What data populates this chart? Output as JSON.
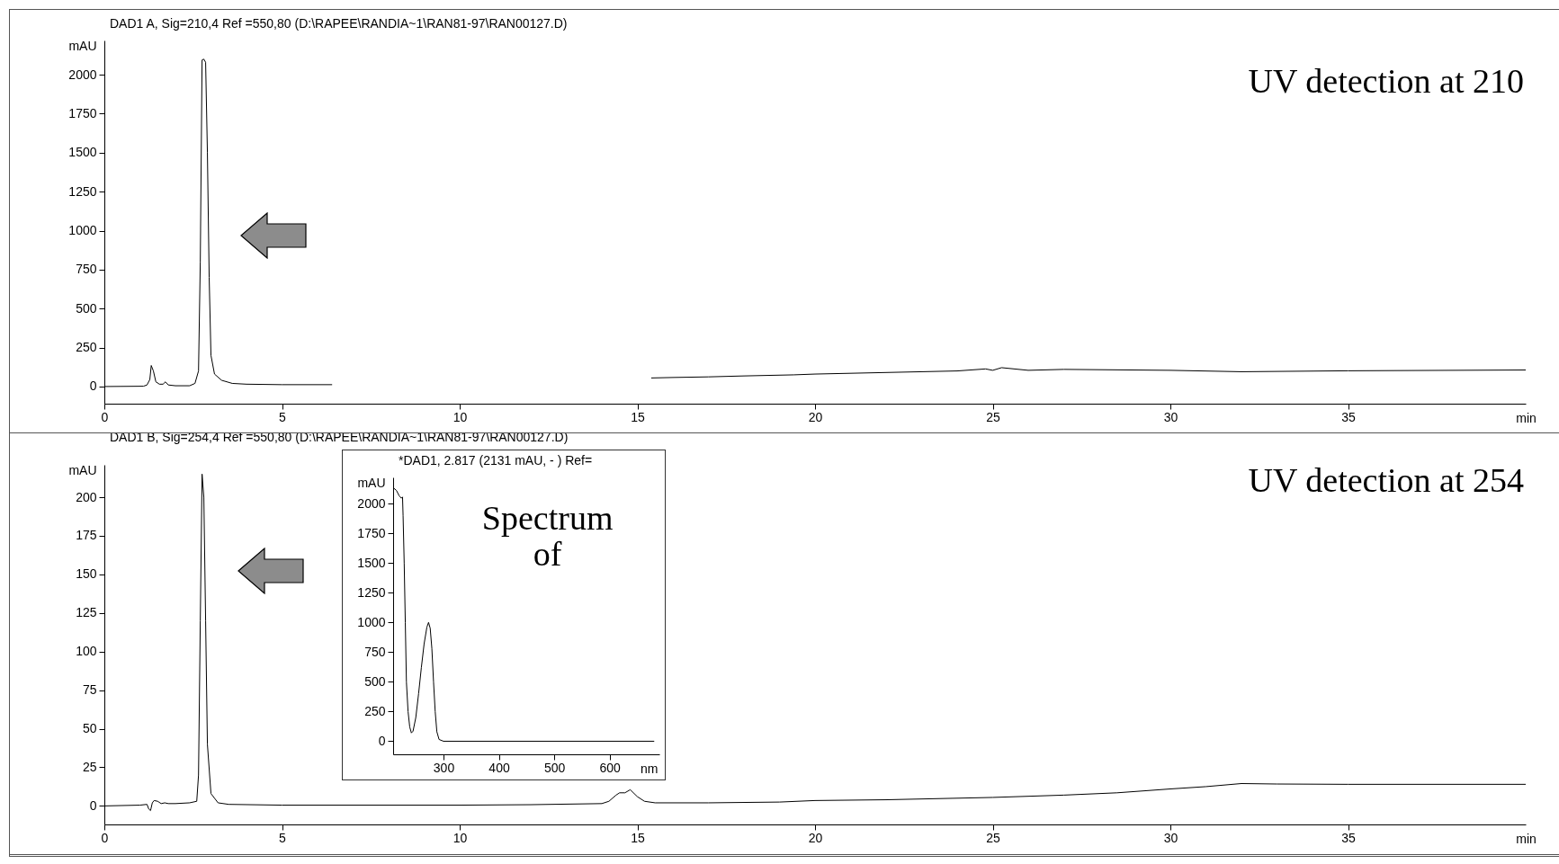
{
  "chart_data": [
    {
      "type": "line",
      "title": "DAD1 A, Sig=210,4 Ref =550,80 (D:\\RAPEE\\RANDIA~1\\RAN81-97\\RAN00127.D)",
      "xlabel": "min",
      "ylabel": "mAU",
      "annotations": [
        "UV detection at 210"
      ],
      "x": [
        0,
        1.1,
        1.2,
        1.28,
        1.32,
        1.38,
        1.45,
        1.55,
        1.65,
        1.72,
        1.8,
        2.0,
        2.4,
        2.55,
        2.65,
        2.7,
        2.75,
        2.8,
        2.85,
        2.9,
        2.95,
        3.0,
        3.1,
        3.3,
        3.6,
        4,
        5,
        6,
        6.4,
        10,
        15.4,
        16,
        17,
        18,
        19.4,
        20,
        22,
        24,
        24.8,
        25,
        25.25,
        26,
        27,
        30,
        32,
        35,
        40
      ],
      "series": [
        {
          "color": "#000000",
          "values": [
            0,
            2,
            10,
            45,
            135,
            100,
            30,
            15,
            15,
            30,
            10,
            5,
            5,
            20,
            100,
            800,
            2095,
            2100,
            2080,
            1500,
            700,
            200,
            80,
            40,
            20,
            15,
            12,
            12,
            12,
            null,
            55,
            58,
            62,
            68,
            75,
            80,
            90,
            100,
            113,
            104,
            121,
            104,
            110,
            104,
            95,
            101,
            106
          ]
        }
      ],
      "xlim": [
        0,
        40
      ],
      "xticks": [
        0,
        5,
        10,
        15,
        20,
        25,
        30,
        35
      ],
      "ylim": [
        -110,
        2220
      ],
      "yticks": [
        0,
        250,
        500,
        750,
        1000,
        1250,
        1500,
        1750,
        2000
      ]
    },
    {
      "type": "line",
      "title": "DAD1 B, Sig=254,4 Ref =550,80 (D:\\RAPEE\\RANDIA~1\\RAN81-97\\RAN00127.D)",
      "xlabel": "min",
      "ylabel": "mAU",
      "annotations": [
        "UV detection at 254"
      ],
      "x": [
        0,
        1.0,
        1.2,
        1.25,
        1.3,
        1.35,
        1.4,
        1.5,
        1.6,
        1.7,
        1.8,
        2.0,
        2.4,
        2.6,
        2.65,
        2.7,
        2.75,
        2.8,
        2.85,
        2.9,
        3.0,
        3.2,
        3.5,
        5,
        10,
        12,
        14,
        14.2,
        14.4,
        14.5,
        14.65,
        14.8,
        15.0,
        15.2,
        15.5,
        17,
        19,
        20,
        22,
        25,
        27,
        28.5,
        30,
        31,
        32,
        33,
        35,
        38,
        40
      ],
      "series": [
        {
          "color": "#000000",
          "values": [
            0,
            0.5,
            1,
            -2,
            -3,
            2,
            3.5,
            3,
            1.5,
            2,
            1.5,
            1.5,
            2,
            3,
            20,
            120,
            215,
            200,
            120,
            40,
            8,
            2,
            1,
            0.5,
            0.5,
            0.8,
            1.5,
            3,
            7,
            8.5,
            8.5,
            10.5,
            6,
            3,
            2,
            2,
            2.5,
            3.5,
            4,
            5.5,
            7,
            8.5,
            11,
            12.5,
            14.5,
            14.2,
            14,
            14,
            14
          ]
        }
      ],
      "xlim": [
        0,
        40
      ],
      "xticks": [
        0,
        5,
        10,
        15,
        20,
        25,
        30,
        35
      ],
      "ylim": [
        -12,
        221
      ],
      "yticks": [
        0,
        25,
        50,
        75,
        100,
        125,
        150,
        175,
        200
      ]
    },
    {
      "type": "line",
      "title": "*DAD1, 2.817 (2131 mAU, - ) Ref=",
      "xlabel": "nm",
      "ylabel": "mAU",
      "annotations": [
        "Spectrum of"
      ],
      "x": [
        210,
        215,
        220,
        224,
        226,
        227,
        229,
        231,
        233,
        236,
        239,
        242,
        245,
        250,
        255,
        260,
        265,
        270,
        273,
        276,
        279,
        282,
        285,
        288,
        292,
        300,
        680
      ],
      "series": [
        {
          "color": "#000000",
          "values": [
            2130,
            2110,
            2065,
            2045,
            2055,
            1900,
            1500,
            1000,
            500,
            250,
            120,
            70,
            85,
            200,
            400,
            620,
            820,
            960,
            1000,
            950,
            780,
            500,
            250,
            80,
            15,
            0,
            0
          ]
        }
      ],
      "xlim": [
        209,
        690
      ],
      "xticks": [
        300,
        400,
        500,
        600
      ],
      "ylim": [
        -110,
        2220
      ],
      "yticks": [
        0,
        250,
        500,
        750,
        1000,
        1250,
        1500,
        1750,
        2000
      ]
    }
  ]
}
